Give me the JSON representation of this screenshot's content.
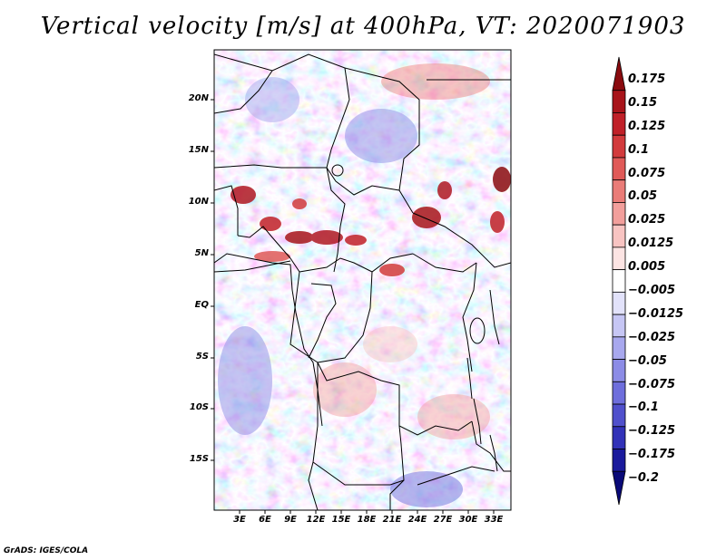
{
  "title": "Vertical velocity [m/s] at 400hPa, VT: 2020071903",
  "credit": "GrADS: IGES/COLA",
  "map": {
    "lat_labels": [
      "20N",
      "15N",
      "10N",
      "5N",
      "EQ",
      "5S",
      "10S",
      "15S"
    ],
    "lon_labels": [
      "3E",
      "6E",
      "9E",
      "12E",
      "15E",
      "18E",
      "21E",
      "24E",
      "27E",
      "30E",
      "33E"
    ]
  },
  "colorbar": {
    "labels": [
      "0.175",
      "0.15",
      "0.125",
      "0.1",
      "0.075",
      "0.05",
      "0.025",
      "0.0125",
      "0.005",
      "−0.005",
      "−0.0125",
      "−0.025",
      "−0.05",
      "−0.075",
      "−0.1",
      "−0.125",
      "−0.175",
      "−0.2"
    ],
    "colors": [
      "#8a0b0f",
      "#a8141a",
      "#c02028",
      "#d23a3c",
      "#e05a58",
      "#ea7c78",
      "#f29f9c",
      "#f8c4c2",
      "#fce4e3",
      "#ffffff",
      "#e2e2fa",
      "#c6c6f4",
      "#a8a8ee",
      "#8c8ce6",
      "#6e6edc",
      "#5050cc",
      "#3232b8",
      "#1a1a9c",
      "#0a0a78"
    ]
  }
}
